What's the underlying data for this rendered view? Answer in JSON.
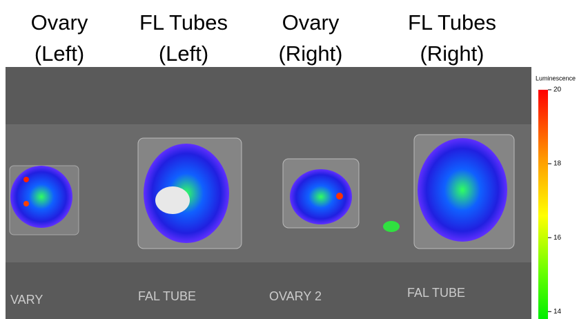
{
  "labels": [
    {
      "name": "Ovary",
      "side": "(Left)"
    },
    {
      "name": "FL Tubes",
      "side": "(Left)"
    },
    {
      "name": "Ovary",
      "side": "(Right)"
    },
    {
      "name": "FL Tubes",
      "side": "(Right)"
    }
  ],
  "colorbar": {
    "title": "Luminescence",
    "limits": [
      13.8,
      20
    ],
    "ticks": [
      20,
      18,
      16,
      14
    ]
  }
}
